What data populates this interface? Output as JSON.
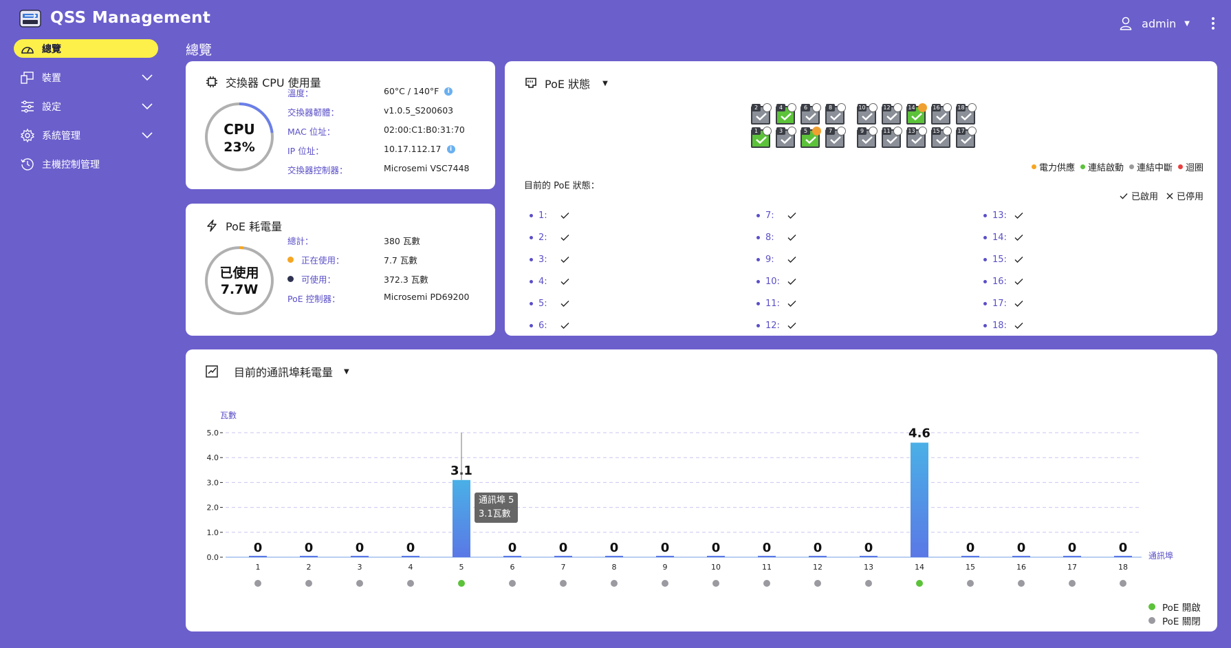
{
  "app": {
    "title": "QSS  Management",
    "user": "admin"
  },
  "sidebar": {
    "items": [
      {
        "label": "總覽",
        "active": true
      },
      {
        "label": "裝置",
        "expandable": true
      },
      {
        "label": "設定",
        "expandable": true
      },
      {
        "label": "系統管理",
        "expandable": true
      },
      {
        "label": "主機控制管理",
        "expandable": false
      }
    ]
  },
  "page_title": "總覽",
  "cpu_card": {
    "title": "交換器  CPU  使用量",
    "ring_label": "CPU",
    "ring_value": "23%",
    "usage_fraction": 0.23,
    "rows": [
      {
        "key": "溫度：",
        "value": "60°C  /  140°F",
        "info": true
      },
      {
        "key": "交換器韌體：",
        "value": "v1.0.5_S200603",
        "info": false
      },
      {
        "key": "MAC  位址：",
        "value": "02:00:C1:B0:31:70",
        "info": false
      },
      {
        "key": "IP  位址：",
        "value": "10.17.112.17",
        "info": true
      },
      {
        "key": "交換器控制器：",
        "value": "Microsemi  VSC7448",
        "info": false
      }
    ]
  },
  "poe_power_card": {
    "title": "PoE  耗電量",
    "ring_label": "已使用",
    "ring_value": "7.7W",
    "used_fraction": 0.02,
    "rows": [
      {
        "key": "總計：",
        "value": "380  瓦數",
        "bullet": ""
      },
      {
        "key": "正在使用：",
        "value": "7.7  瓦數",
        "bullet": "#f5a623"
      },
      {
        "key": "可使用：",
        "value": "372.3  瓦數",
        "bullet": "#2f3350"
      },
      {
        "key": "PoE  控制器：",
        "value": "Microsemi  PD69200",
        "bullet": ""
      }
    ]
  },
  "poe_status_card": {
    "title": "PoE  狀態",
    "ports_top": [
      {
        "num": "2",
        "on": false,
        "bolt": "white"
      },
      {
        "num": "4",
        "on": true,
        "bolt": "white"
      },
      {
        "num": "6",
        "on": false,
        "bolt": "white"
      },
      {
        "num": "8",
        "on": false,
        "bolt": "white"
      },
      {
        "num": "10",
        "on": false,
        "bolt": "white"
      },
      {
        "num": "12",
        "on": false,
        "bolt": "white"
      },
      {
        "num": "14",
        "on": true,
        "bolt": "orange"
      },
      {
        "num": "16",
        "on": false,
        "bolt": "white"
      },
      {
        "num": "18",
        "on": false,
        "bolt": "white"
      }
    ],
    "ports_bottom": [
      {
        "num": "1",
        "on": true,
        "bolt": "white"
      },
      {
        "num": "3",
        "on": false,
        "bolt": "white"
      },
      {
        "num": "5",
        "on": true,
        "bolt": "orange"
      },
      {
        "num": "7",
        "on": false,
        "bolt": "white"
      },
      {
        "num": "9",
        "on": false,
        "bolt": "white"
      },
      {
        "num": "11",
        "on": false,
        "bolt": "white"
      },
      {
        "num": "13",
        "on": false,
        "bolt": "white"
      },
      {
        "num": "15",
        "on": false,
        "bolt": "white"
      },
      {
        "num": "17",
        "on": false,
        "bolt": "white"
      }
    ],
    "legend": [
      {
        "label": "電力供應",
        "color": "#f5a623"
      },
      {
        "label": "連結啟動",
        "color": "#5cc23a"
      },
      {
        "label": "連結中斷",
        "color": "#9a9a9a"
      },
      {
        "label": "迴圈",
        "color": "#e84040"
      }
    ],
    "current_label": "目前的  PoE  狀態：",
    "enabled_label": "已啟用",
    "disabled_label": "已停用",
    "status": [
      {
        "label": "1:"
      },
      {
        "label": "2:"
      },
      {
        "label": "3:"
      },
      {
        "label": "4:"
      },
      {
        "label": "5:"
      },
      {
        "label": "6:"
      },
      {
        "label": "7:"
      },
      {
        "label": "8:"
      },
      {
        "label": "9:"
      },
      {
        "label": "10:"
      },
      {
        "label": "11:"
      },
      {
        "label": "12:"
      },
      {
        "label": "13:"
      },
      {
        "label": "14:"
      },
      {
        "label": "15:"
      },
      {
        "label": "16:"
      },
      {
        "label": "17:"
      },
      {
        "label": "18:"
      }
    ]
  },
  "chart_card": {
    "title": "目前的通訊埠耗電量",
    "tooltip": {
      "line1": "通訊埠  5",
      "line2": "3.1瓦數"
    },
    "poe_on_label": "PoE  開啟",
    "poe_off_label": "PoE  關閉"
  },
  "chart_data": {
    "type": "bar",
    "ylabel": "瓦數",
    "xlabel": "通訊埠",
    "ylim": [
      0,
      5.0
    ],
    "yticks": [
      "0.0",
      "1.0",
      "2.0",
      "3.0",
      "4.0",
      "5.0"
    ],
    "categories": [
      "1",
      "2",
      "3",
      "4",
      "5",
      "6",
      "7",
      "8",
      "9",
      "10",
      "11",
      "12",
      "13",
      "14",
      "15",
      "16",
      "17",
      "18"
    ],
    "values": [
      0,
      0,
      0,
      0,
      3.1,
      0,
      0,
      0,
      0,
      0,
      0,
      0,
      0,
      4.6,
      0,
      0,
      0,
      0
    ],
    "value_labels": [
      "0",
      "0",
      "0",
      "0",
      "3.1",
      "0",
      "0",
      "0",
      "0",
      "0",
      "0",
      "0",
      "0",
      "4.6",
      "0",
      "0",
      "0",
      "0"
    ],
    "poe_on": [
      false,
      false,
      false,
      false,
      true,
      false,
      false,
      false,
      false,
      false,
      false,
      false,
      false,
      true,
      false,
      false,
      false,
      false
    ],
    "colors": {
      "bar": "#4a8fe0",
      "on": "#5cc23a",
      "off": "#9a9aa0",
      "grid": "#c9c6f0"
    },
    "grid": true
  }
}
